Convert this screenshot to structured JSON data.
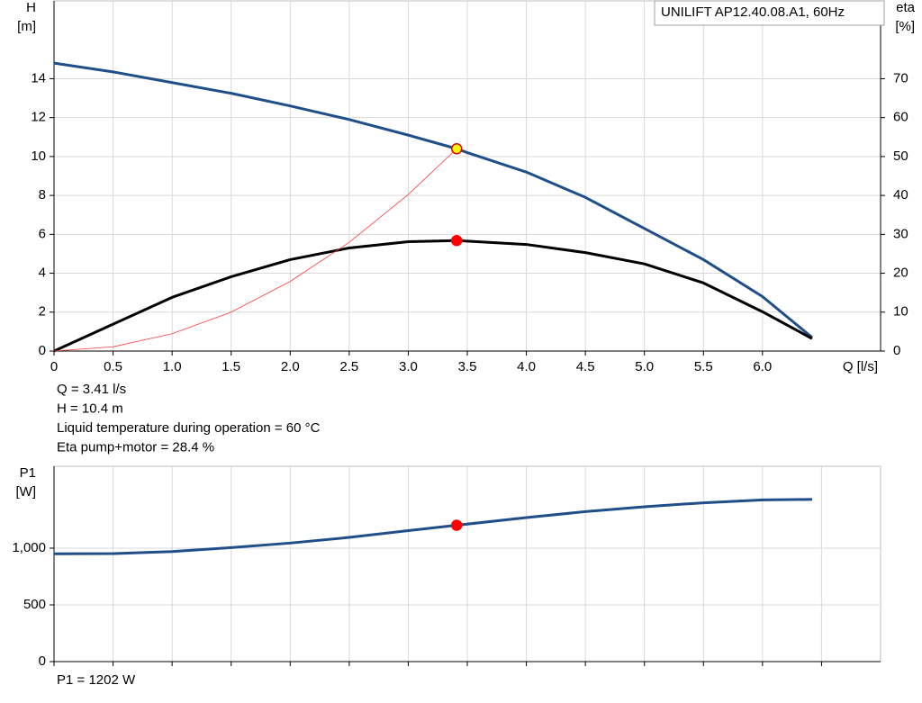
{
  "chart_data": [
    {
      "type": "line",
      "title": "UNILIFT AP12.40.08.A1, 60Hz",
      "y_label": [
        "H",
        "[m]"
      ],
      "y2_label": [
        "eta",
        "[%]"
      ],
      "x_label": "Q [l/s]",
      "xlim": [
        0,
        7
      ],
      "xticks": [
        0,
        0.5,
        {
          "value": 1,
          "label": "1.0"
        },
        1.5,
        {
          "value": 2,
          "label": "2.0"
        },
        2.5,
        {
          "value": 3,
          "label": "3.0"
        },
        3.5,
        {
          "value": 4,
          "label": "4.0"
        },
        4.5,
        {
          "value": 5,
          "label": "5.0"
        },
        5.5,
        {
          "value": 6,
          "label": "6.0"
        }
      ],
      "ylim": [
        0,
        18
      ],
      "yticks": [
        0,
        2,
        4,
        6,
        8,
        10,
        12,
        14
      ],
      "y2lim": [
        0,
        90
      ],
      "y2ticks": [
        0,
        10,
        20,
        30,
        40,
        50,
        60,
        70
      ],
      "grid": true,
      "series": [
        {
          "color": "#1f4e89",
          "width": 3,
          "x": [
            0,
            0.5,
            1,
            1.5,
            2,
            2.5,
            3,
            3.41,
            3.5,
            4,
            4.5,
            5,
            5.5,
            6,
            6.42
          ],
          "values": [
            14.8,
            14.35,
            13.8,
            13.25,
            12.6,
            11.9,
            11.1,
            10.4,
            10.2,
            9.2,
            7.9,
            6.3,
            4.7,
            2.8,
            0.7
          ]
        },
        {
          "color": "#000000",
          "width": 3,
          "axis": "y2",
          "x": [
            0,
            0.5,
            1,
            1.5,
            2,
            2.5,
            3,
            3.41,
            4,
            4.5,
            5,
            5.5,
            6,
            6.42
          ],
          "values": [
            0,
            6.9,
            13.8,
            19.1,
            23.5,
            26.5,
            28.1,
            28.4,
            27.4,
            25.3,
            22.4,
            17.5,
            10.1,
            3.2
          ]
        },
        {
          "color": "#ff3b3b",
          "width": 0.8,
          "x": [
            0,
            0.5,
            1,
            1.5,
            2,
            2.5,
            3,
            3.41
          ],
          "values": [
            0,
            0.22,
            0.89,
            2.0,
            3.58,
            5.59,
            8.05,
            10.4
          ]
        }
      ],
      "markers": [
        {
          "color": "#ffff00",
          "stroke": "#e00000",
          "x": [
            3.41
          ],
          "values": [
            10.4
          ]
        },
        {
          "color": "#ff0000",
          "stroke": "#ff0000",
          "axis": "y2",
          "x": [
            3.41
          ],
          "values": [
            28.4
          ]
        }
      ],
      "notes": [
        "Q = 3.41 l/s",
        "H = 10.4 m",
        "Liquid temperature during operation = 60 °C",
        "Eta pump+motor = 28.4 %"
      ]
    },
    {
      "type": "line",
      "y_label": [
        "P1",
        "[W]"
      ],
      "xlim": [
        0,
        7
      ],
      "xticks": [
        0,
        0.5,
        1,
        1.5,
        2,
        2.5,
        3,
        3.5,
        4,
        4.5,
        5,
        5.5,
        6,
        6.5
      ],
      "ylim": [
        0,
        1722
      ],
      "yticks": [
        0,
        500,
        {
          "value": 1000,
          "label": "1,000"
        }
      ],
      "grid": true,
      "series": [
        {
          "color": "#1f4e89",
          "width": 3,
          "x": [
            0,
            0.5,
            1,
            1.5,
            2,
            2.5,
            3,
            3.41,
            4,
            4.5,
            5,
            5.5,
            6,
            6.42
          ],
          "values": [
            950,
            952,
            970,
            1005,
            1045,
            1095,
            1155,
            1202,
            1270,
            1322,
            1365,
            1400,
            1425,
            1430
          ]
        }
      ],
      "markers": [
        {
          "color": "#ff0000",
          "stroke": "#ff0000",
          "x": [
            3.41
          ],
          "values": [
            1202
          ]
        }
      ],
      "notes": [
        "P1 = 1202 W"
      ]
    }
  ]
}
